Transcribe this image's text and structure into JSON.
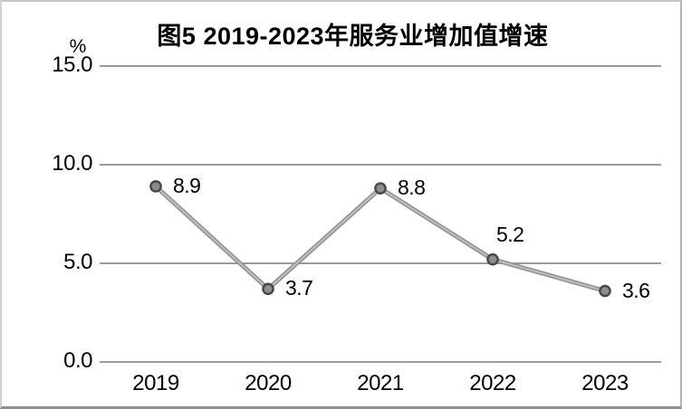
{
  "chart": {
    "title": "图5 2019-2023年服务业增加值增速",
    "unit": "%"
  },
  "chart_data": {
    "type": "line",
    "title": "图5 2019-2023年服务业增加值增速",
    "categories": [
      "2019",
      "2020",
      "2021",
      "2022",
      "2023"
    ],
    "values": [
      8.9,
      3.7,
      8.8,
      5.2,
      3.6
    ],
    "data_labels": [
      "8.9",
      "3.7",
      "8.8",
      "5.2",
      "3.6"
    ],
    "label_placements": [
      "right",
      "right",
      "right",
      "above",
      "right"
    ],
    "xlabel": "",
    "ylabel": "%",
    "ylim": [
      0,
      15
    ],
    "yticks": [
      0.0,
      5.0,
      10.0,
      15.0
    ],
    "ytick_labels": [
      "0.0",
      "5.0",
      "10.0",
      "15.0"
    ],
    "grid": true,
    "legend": "none",
    "colors": {
      "line": "#959595",
      "line_highlight": "#c4c4c4",
      "marker_fill": "#8d8d8d",
      "marker_stroke": "#474747",
      "gridline": "#9b9b9b",
      "text": "#000000",
      "background": "#ffffff"
    }
  }
}
